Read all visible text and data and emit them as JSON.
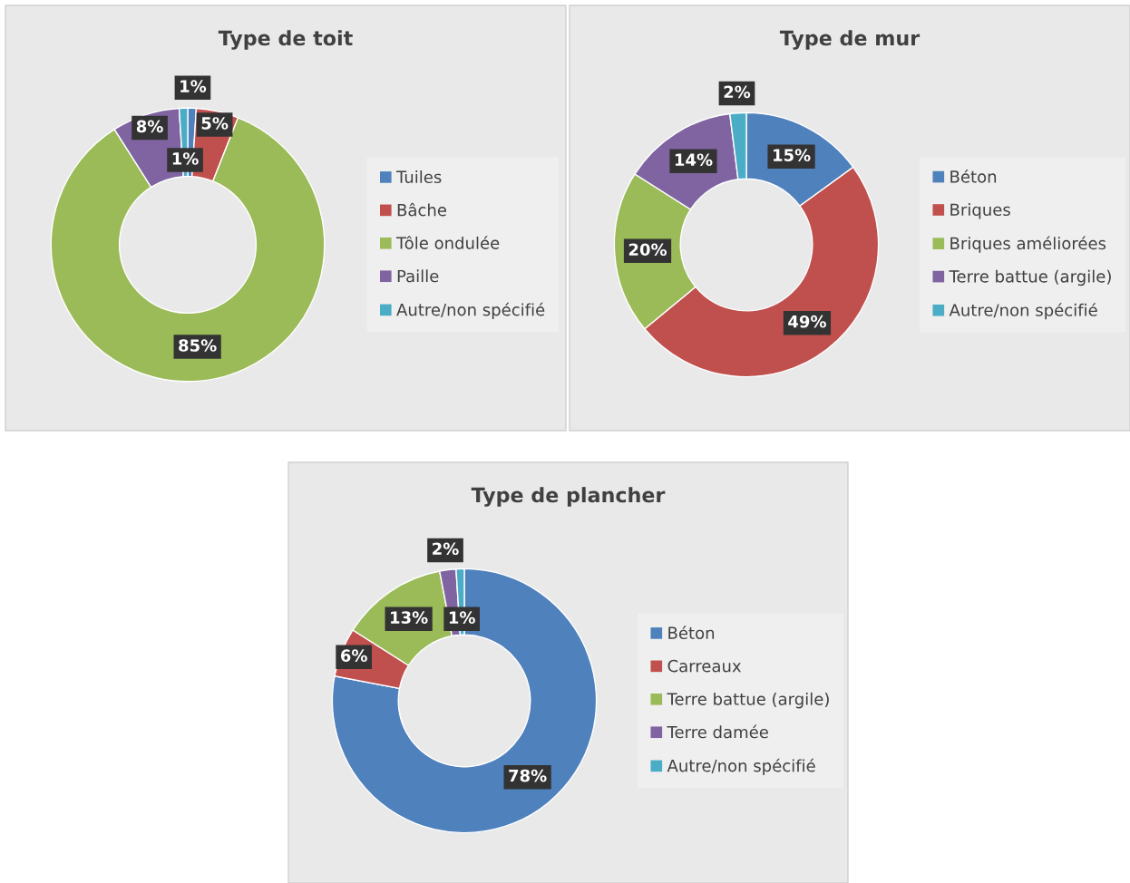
{
  "chart_data": [
    {
      "type": "donut",
      "title": "Type de toit",
      "categories": [
        "Tuiles",
        "Bâche",
        "Tôle ondulée",
        "Paille",
        "Autre/non spécifié"
      ],
      "values": [
        1,
        5,
        85,
        8,
        1
      ],
      "value_labels": [
        "1%",
        "5%",
        "85%",
        "8%",
        "1%"
      ],
      "colors": [
        "#4f81bd",
        "#c0504d",
        "#9bbb59",
        "#8064a2",
        "#4bacc6"
      ],
      "legend": "right"
    },
    {
      "type": "donut",
      "title": "Type de mur",
      "categories": [
        "Béton",
        "Briques",
        "Briques améliorées",
        "Terre battue (argile)",
        "Autre/non spécifié"
      ],
      "values": [
        15,
        49,
        20,
        14,
        2
      ],
      "value_labels": [
        "15%",
        "49%",
        "20%",
        "14%",
        "2%"
      ],
      "colors": [
        "#4f81bd",
        "#c0504d",
        "#9bbb59",
        "#8064a2",
        "#4bacc6"
      ],
      "legend": "right"
    },
    {
      "type": "donut",
      "title": "Type de plancher",
      "categories": [
        "Béton",
        "Carreaux",
        "Terre battue (argile)",
        "Terre damée",
        "Autre/non spécifié"
      ],
      "values": [
        78,
        6,
        13,
        2,
        1
      ],
      "value_labels": [
        "78%",
        "6%",
        "13%",
        "2%",
        "1%"
      ],
      "colors": [
        "#4f81bd",
        "#c0504d",
        "#9bbb59",
        "#8064a2",
        "#4bacc6"
      ],
      "legend": "right"
    }
  ]
}
